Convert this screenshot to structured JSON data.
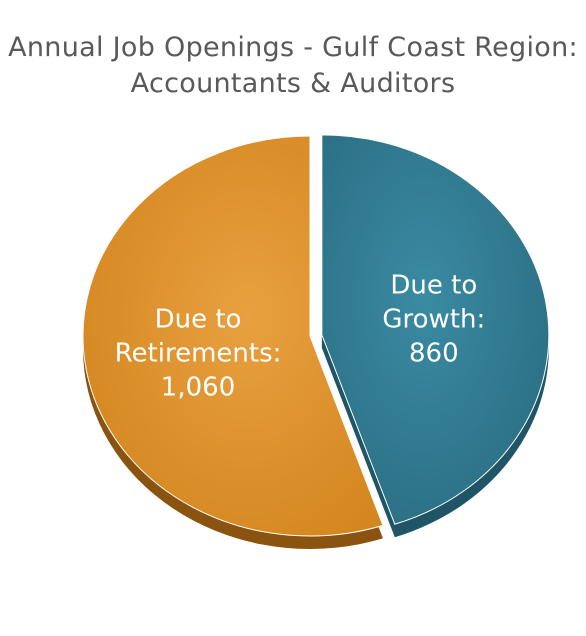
{
  "chart_data": {
    "type": "pie",
    "title_lines": [
      "Annual Job Openings - Gulf Coast Region:",
      "Accountants & Auditors"
    ],
    "slices": [
      {
        "label_lines": [
          "Due to",
          "Growth:",
          "860"
        ],
        "value": 860,
        "color": "#31798f",
        "exploded": true
      },
      {
        "label_lines": [
          "Due to",
          "Retirements:",
          "1,060"
        ],
        "value": 1060,
        "color": "#e0902a",
        "exploded": false
      }
    ]
  }
}
